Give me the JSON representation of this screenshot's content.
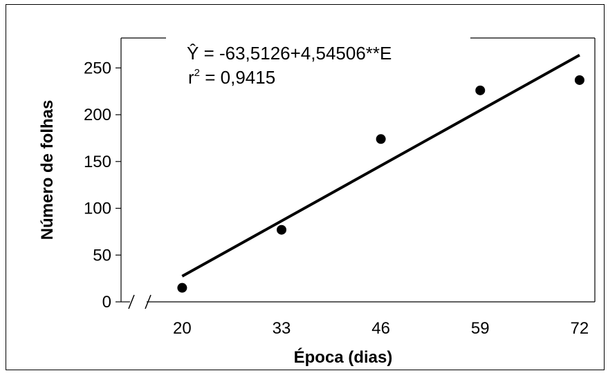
{
  "chart_data": {
    "type": "scatter",
    "xlabel": "Época (dias)",
    "ylabel": "Número de folhas",
    "x_ticks": [
      "20",
      "33",
      "46",
      "59",
      "72"
    ],
    "y_ticks": [
      "0",
      "50",
      "100",
      "150",
      "200",
      "250"
    ],
    "xlim": [
      12,
      74
    ],
    "ylim": [
      0,
      282
    ],
    "grid": false,
    "points": [
      {
        "x": 20,
        "y": 15
      },
      {
        "x": 33,
        "y": 77
      },
      {
        "x": 46,
        "y": 174
      },
      {
        "x": 59,
        "y": 226
      },
      {
        "x": 72,
        "y": 237
      }
    ],
    "fit": {
      "intercept": -63.5126,
      "slope": 4.54506,
      "x_range": [
        20,
        72
      ]
    },
    "annotations": {
      "equation_yhat": "Ŷ",
      "equation_rest": " = -63,5126+4,54506**E",
      "r2_r": "r",
      "r2_sup": "2",
      "r2_value": " = 0,9415"
    }
  }
}
